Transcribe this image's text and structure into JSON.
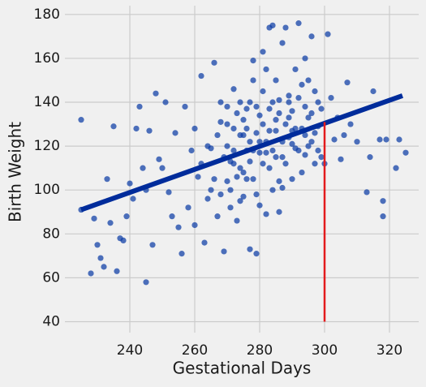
{
  "chart_data": {
    "type": "scatter",
    "x_label": "Gestational Days",
    "y_label": "Birth Weight",
    "xlim": [
      220,
      329
    ],
    "ylim": [
      35,
      184
    ],
    "xticks": [
      240,
      260,
      280,
      300,
      320
    ],
    "yticks": [
      40,
      60,
      80,
      100,
      120,
      140,
      160,
      180
    ],
    "grid": true,
    "color": "#0b3ca5",
    "x": [
      225,
      225,
      228,
      229,
      230,
      231,
      232,
      233,
      234,
      235,
      236,
      237,
      238,
      239,
      240,
      241,
      242,
      243,
      244,
      245,
      245,
      246,
      247,
      248,
      249,
      250,
      251,
      252,
      253,
      254,
      255,
      256,
      257,
      258,
      259,
      260,
      261,
      262,
      263,
      264,
      265,
      266,
      267,
      268,
      269,
      270,
      271,
      272,
      273,
      274,
      275,
      276,
      277,
      278,
      279,
      280,
      281,
      282,
      283,
      284,
      285,
      286,
      287,
      288,
      289,
      290,
      291,
      292,
      293,
      294,
      295,
      296,
      297,
      298,
      299,
      300,
      301,
      302,
      303,
      304,
      305,
      306,
      307,
      308,
      310,
      313,
      314,
      315,
      317,
      318,
      318,
      319,
      322,
      323,
      325,
      270,
      272,
      274,
      275,
      276,
      277,
      278,
      279,
      280,
      281,
      282,
      283,
      284,
      285,
      286,
      287,
      288,
      289,
      290,
      291,
      292,
      293,
      294,
      295,
      296,
      297,
      298,
      299,
      271,
      273,
      275,
      277,
      279,
      281,
      283,
      285,
      287,
      289,
      291,
      293,
      295,
      297,
      269,
      267,
      266,
      268,
      264,
      262,
      260,
      265,
      271,
      274,
      278,
      282,
      286,
      290,
      294,
      288,
      284,
      280,
      276,
      272,
      270,
      268,
      285,
      287,
      289,
      283,
      281,
      279,
      277,
      275,
      273,
      290,
      292,
      296,
      298,
      294,
      286,
      284,
      282,
      280,
      278,
      276,
      274,
      272,
      270
    ],
    "values": [
      132,
      91,
      62,
      87,
      75,
      69,
      65,
      105,
      85,
      129,
      63,
      78,
      77,
      88,
      103,
      96,
      128,
      138,
      110,
      58,
      100,
      127,
      75,
      144,
      114,
      110,
      140,
      99,
      88,
      126,
      83,
      71,
      138,
      92,
      118,
      84,
      106,
      152,
      76,
      96,
      119,
      158,
      88,
      131,
      72,
      104,
      113,
      146,
      86,
      125,
      97,
      137,
      73,
      159,
      71,
      117,
      163,
      89,
      174,
      175,
      132,
      104,
      167,
      174,
      143,
      121,
      155,
      176,
      108,
      138,
      150,
      170,
      126,
      118,
      137,
      112,
      171,
      142,
      123,
      133,
      114,
      125,
      149,
      130,
      122,
      99,
      115,
      145,
      123,
      95,
      88,
      123,
      110,
      123,
      117,
      120,
      128,
      110,
      132,
      118,
      140,
      105,
      126,
      134,
      112,
      122,
      137,
      118,
      127,
      141,
      115,
      130,
      124,
      136,
      119,
      142,
      128,
      116,
      133,
      122,
      145,
      129,
      115,
      100,
      135,
      108,
      122,
      98,
      145,
      110,
      150,
      101,
      133,
      128,
      148,
      120,
      112,
      115,
      125,
      105,
      140,
      120,
      112,
      128,
      100,
      92,
      95,
      150,
      155,
      90,
      105,
      160,
      112,
      100,
      93,
      128,
      118,
      138,
      98,
      115,
      122,
      140,
      127,
      130,
      138,
      113,
      125,
      106,
      127,
      118,
      135,
      140,
      125,
      135,
      140,
      117,
      122,
      118,
      105,
      140,
      112,
      130
    ],
    "lines": [
      {
        "x": [
          225,
          324
        ],
        "values": [
          91,
          143
        ],
        "color": "#002c9b",
        "width": 6
      },
      {
        "x": [
          300,
          300
        ],
        "values": [
          40,
          131
        ],
        "color": "#e31a1c",
        "width": 2.5
      }
    ]
  }
}
